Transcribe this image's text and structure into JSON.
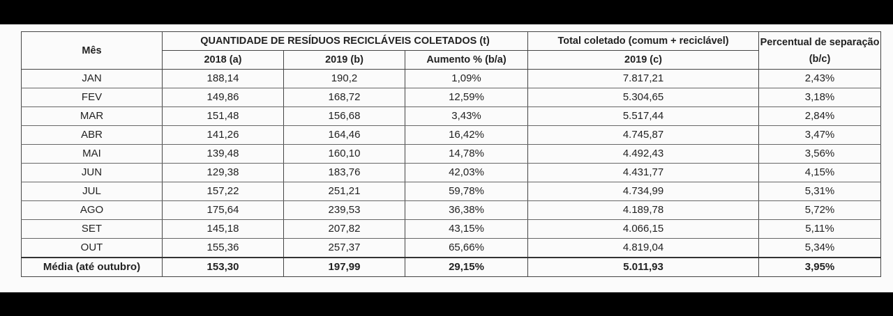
{
  "table": {
    "header": {
      "month": "Mês",
      "group": "QUANTIDADE DE RESÍDUOS RECICLÁVEIS COLETADOS (t)",
      "total": "Total coletado (comum + reciclável)",
      "percent": "Percentual de separação (b/c)",
      "sub": [
        "2018 (a)",
        "2019 (b)",
        "Aumento % (b/a)",
        "2019 (c)"
      ]
    },
    "rows": [
      [
        "JAN",
        "188,14",
        "190,2",
        "1,09%",
        "7.817,21",
        "2,43%"
      ],
      [
        "FEV",
        "149,86",
        "168,72",
        "12,59%",
        "5.304,65",
        "3,18%"
      ],
      [
        "MAR",
        "151,48",
        "156,68",
        "3,43%",
        "5.517,44",
        "2,84%"
      ],
      [
        "ABR",
        "141,26",
        "164,46",
        "16,42%",
        "4.745,87",
        "3,47%"
      ],
      [
        "MAI",
        "139,48",
        "160,10",
        "14,78%",
        "4.492,43",
        "3,56%"
      ],
      [
        "JUN",
        "129,38",
        "183,76",
        "42,03%",
        "4.431,77",
        "4,15%"
      ],
      [
        "JUL",
        "157,22",
        "251,21",
        "59,78%",
        "4.734,99",
        "5,31%"
      ],
      [
        "AGO",
        "175,64",
        "239,53",
        "36,38%",
        "4.189,78",
        "5,72%"
      ],
      [
        "SET",
        "145,18",
        "207,82",
        "43,15%",
        "4.066,15",
        "5,11%"
      ],
      [
        "OUT",
        "155,36",
        "257,37",
        "65,66%",
        "4.819,04",
        "5,34%"
      ]
    ],
    "footer": [
      "Média (até outubro)",
      "153,30",
      "197,99",
      "29,15%",
      "5.011,93",
      "3,95%"
    ]
  }
}
